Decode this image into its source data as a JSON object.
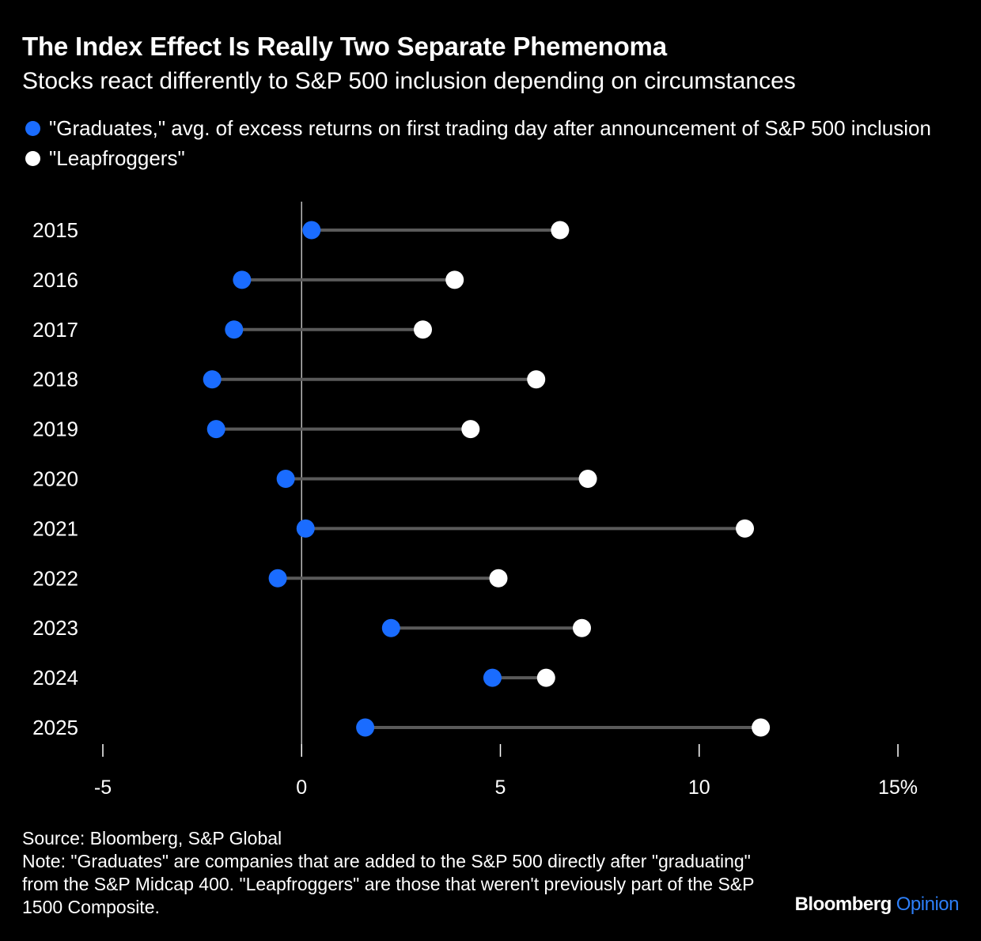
{
  "title": "The Index Effect Is Really Two Separate Phemenoma",
  "subtitle": "Stocks react differently to S&P 500 inclusion depending on circumstances",
  "source": "Source: Bloomberg, S&P Global",
  "note": "Note: \"Graduates\" are companies that are added to the S&P 500 directly after \"graduating\" from the S&P Midcap 400. \"Leapfroggers\" are those that weren't previously part of the S&P 1500 Composite.",
  "brand": {
    "name": "Bloomberg",
    "product": "Opinion"
  },
  "colors": {
    "background": "#000000",
    "graduates": "#1a6cff",
    "leapfroggers": "#ffffff",
    "connector": "#5a5a5a",
    "zero_line": "#bbbbbb",
    "brand_accent": "#2d7ff9"
  },
  "chart_data": {
    "type": "dumbbell",
    "orientation": "horizontal",
    "categories": [
      "2015",
      "2016",
      "2017",
      "2018",
      "2019",
      "2020",
      "2021",
      "2022",
      "2023",
      "2024",
      "2025"
    ],
    "series": [
      {
        "name": "\"Graduates,\" avg. of excess returns on first trading day after announcement of S&P 500 inclusion",
        "color": "#1a6cff",
        "values": [
          0.25,
          -1.5,
          -1.7,
          -2.25,
          -2.15,
          -0.4,
          0.1,
          -0.6,
          2.25,
          4.8,
          1.6
        ]
      },
      {
        "name": "\"Leapfroggers\"",
        "color": "#ffffff",
        "values": [
          6.5,
          3.85,
          3.05,
          5.9,
          4.25,
          7.2,
          11.15,
          4.95,
          7.05,
          6.15,
          11.55
        ]
      }
    ],
    "xlim": [
      -5,
      15
    ],
    "xticks": [
      -5,
      0,
      5,
      10,
      15
    ],
    "xtick_labels": [
      "-5",
      "0",
      "5",
      "10",
      "15%"
    ],
    "legend_position": "top-left",
    "grid": false,
    "zero_line": true
  }
}
